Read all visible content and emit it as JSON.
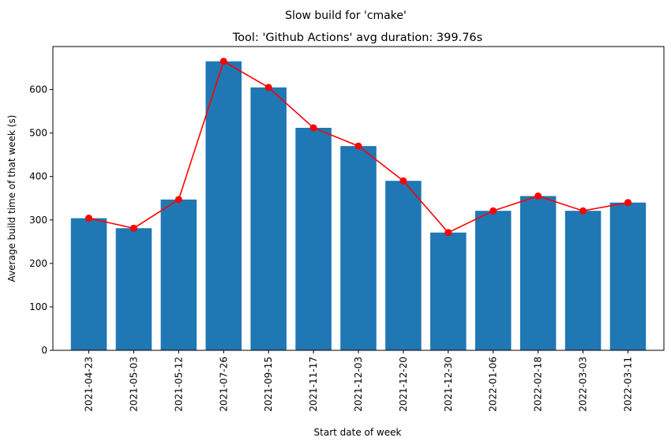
{
  "chart_data": {
    "type": "bar",
    "suptitle": "Slow build for 'cmake'",
    "title": "Tool: 'Github Actions' avg duration: 399.76s",
    "xlabel": "Start date of week",
    "ylabel": "Average build time of that week (s)",
    "categories": [
      "2021-04-23",
      "2021-05-03",
      "2021-05-12",
      "2021-07-26",
      "2021-09-15",
      "2021-11-17",
      "2021-12-03",
      "2021-12-20",
      "2021-12-30",
      "2022-01-06",
      "2022-02-18",
      "2022-03-03",
      "2022-03-11"
    ],
    "values": [
      304,
      281,
      347,
      665,
      605,
      512,
      470,
      390,
      271,
      321,
      355,
      321,
      340
    ],
    "ylim": [
      0,
      699
    ],
    "yticks": [
      0,
      100,
      200,
      300,
      400,
      500,
      600
    ],
    "grid": false,
    "bar_color": "#1f77b4",
    "line_color": "#ff0000",
    "overlay": "line-with-markers"
  }
}
